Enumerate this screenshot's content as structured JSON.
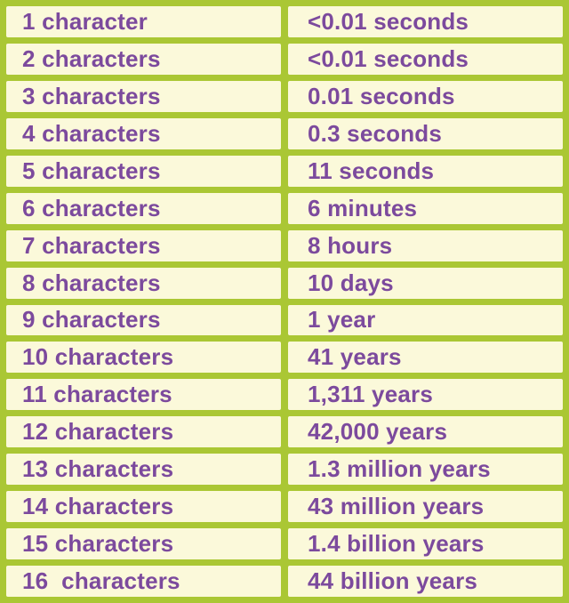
{
  "colors": {
    "border_green": "#aac734",
    "cell_background": "#fbf9da",
    "text_purple": "#7c4a9d"
  },
  "table": {
    "rows": [
      {
        "label": "1 character",
        "value": "<0.01 seconds"
      },
      {
        "label": "2 characters",
        "value": "<0.01 seconds"
      },
      {
        "label": "3 characters",
        "value": "0.01 seconds"
      },
      {
        "label": "4 characters",
        "value": "0.3 seconds"
      },
      {
        "label": "5 characters",
        "value": "11 seconds"
      },
      {
        "label": "6 characters",
        "value": "6 minutes"
      },
      {
        "label": "7 characters",
        "value": "8 hours"
      },
      {
        "label": "8 characters",
        "value": "10 days"
      },
      {
        "label": "9 characters",
        "value": "1 year"
      },
      {
        "label": "10 characters",
        "value": "41 years"
      },
      {
        "label": "11 characters",
        "value": "1,311 years"
      },
      {
        "label": "12 characters",
        "value": "42,000 years"
      },
      {
        "label": "13 characters",
        "value": "1.3 million years"
      },
      {
        "label": "14 characters",
        "value": "43 million years"
      },
      {
        "label": "15 characters",
        "value": "1.4 billion years"
      },
      {
        "label": "16  characters",
        "value": "44 billion years"
      }
    ]
  },
  "chart_data": {
    "type": "table",
    "rows": [
      [
        "1 character",
        "<0.01 seconds"
      ],
      [
        "2 characters",
        "<0.01 seconds"
      ],
      [
        "3 characters",
        "0.01 seconds"
      ],
      [
        "4 characters",
        "0.3 seconds"
      ],
      [
        "5 characters",
        "11 seconds"
      ],
      [
        "6 characters",
        "6 minutes"
      ],
      [
        "7 characters",
        "8 hours"
      ],
      [
        "8 characters",
        "10 days"
      ],
      [
        "9 characters",
        "1 year"
      ],
      [
        "10 characters",
        "41 years"
      ],
      [
        "11 characters",
        "1,311 years"
      ],
      [
        "12 characters",
        "42,000 years"
      ],
      [
        "13 characters",
        "1.3 million years"
      ],
      [
        "14 characters",
        "43 million years"
      ],
      [
        "15 characters",
        "1.4 billion years"
      ],
      [
        "16  characters",
        "44 billion years"
      ]
    ]
  }
}
